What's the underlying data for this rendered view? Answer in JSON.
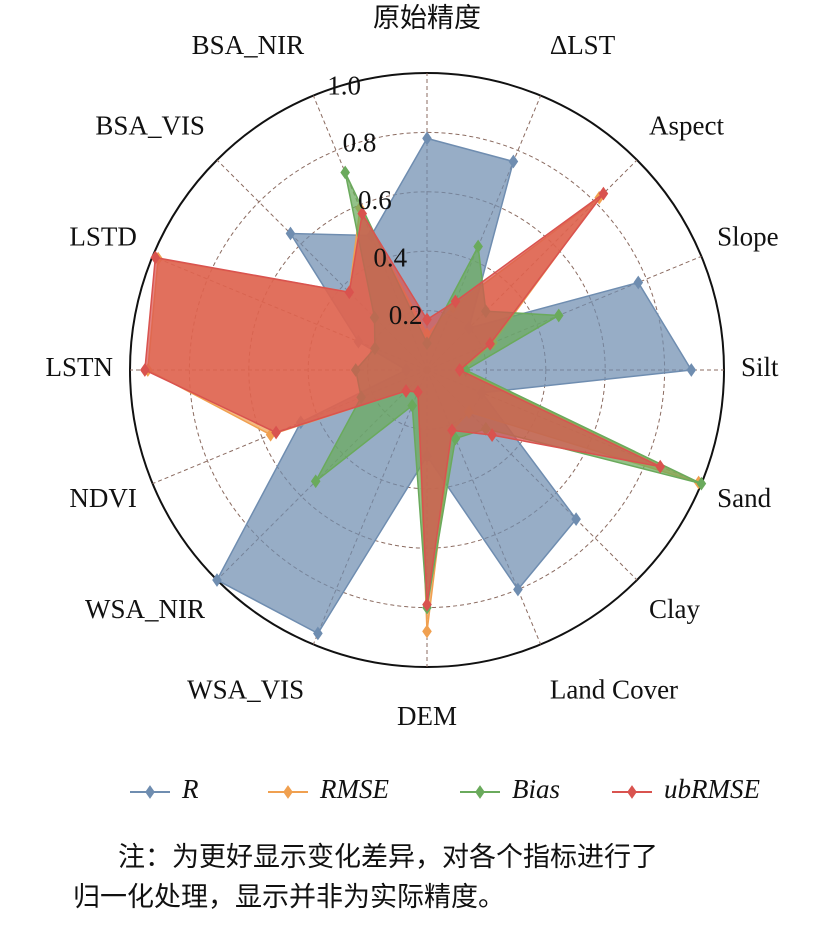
{
  "chart_data": {
    "type": "radar",
    "categories": [
      "原始精度",
      "ΔLST",
      "Aspect",
      "Slope",
      "Silt",
      "Sand",
      "Clay",
      "Land Cover",
      "DEM",
      "WSA_VIS",
      "WSA_NIR",
      "NDVI",
      "LSTN",
      "LSTD",
      "BSA_VIS",
      "BSA_NIR"
    ],
    "ylim": [
      0,
      1
    ],
    "yticks": [
      0.2,
      0.4,
      0.6,
      {
        "value": 0.8,
        "label": "0.8"
      },
      {
        "value": 1,
        "label": "1.0"
      }
    ],
    "grid": true,
    "series": [
      {
        "name": "R",
        "color": "#6f8db0",
        "values": [
          0.78,
          0.76,
          0.2,
          0.77,
          0.89,
          0.2,
          0.71,
          0.8,
          0.29,
          0.96,
          1.0,
          0.46,
          0.07,
          0.25,
          0.65,
          0.49
        ]
      },
      {
        "name": "RMSE",
        "color": "#f0a050",
        "values": [
          0.12,
          0.23,
          0.82,
          0.24,
          0.12,
          0.99,
          0.2,
          0.22,
          0.88,
          0.08,
          0.1,
          0.57,
          0.94,
          0.98,
          0.37,
          0.59
        ]
      },
      {
        "name": "Bias",
        "color": "#6aaa5c",
        "values": [
          0.09,
          0.45,
          0.28,
          0.48,
          0.13,
          1.0,
          0.28,
          0.25,
          0.8,
          0.13,
          0.53,
          0.24,
          0.24,
          0.19,
          0.25,
          0.72
        ]
      },
      {
        "name": "ubRMSE",
        "color": "#d9534f",
        "values": [
          0.17,
          0.25,
          0.84,
          0.23,
          0.11,
          0.85,
          0.31,
          0.22,
          0.79,
          0.08,
          0.1,
          0.55,
          0.95,
          0.99,
          0.37,
          0.57
        ]
      }
    ],
    "legend": "bottom",
    "note": [
      "注：为更好显示变化差异，对各个指标进行了",
      "归一化处理，显示并非为实际精度。"
    ]
  }
}
